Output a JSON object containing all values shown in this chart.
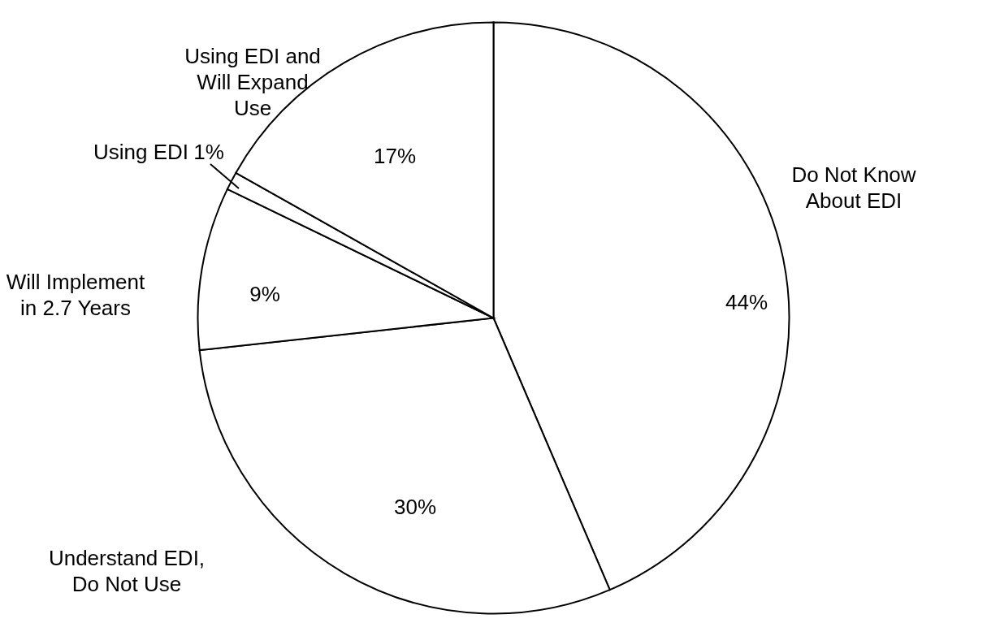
{
  "chart_data": {
    "type": "pie",
    "categories": [
      "Do Not Know About EDI",
      "Understand EDI, Do Not Use",
      "Will Implement in 2.7 Years",
      "Using EDI",
      "Using EDI and Will Expand Use"
    ],
    "values": [
      44,
      30,
      9,
      1,
      17
    ],
    "value_labels": [
      "44%",
      "30%",
      "9%",
      "1%",
      "17%"
    ],
    "colors": [
      "#ffffff",
      "#ffffff",
      "#ffffff",
      "#ffffff",
      "#ffffff"
    ]
  }
}
